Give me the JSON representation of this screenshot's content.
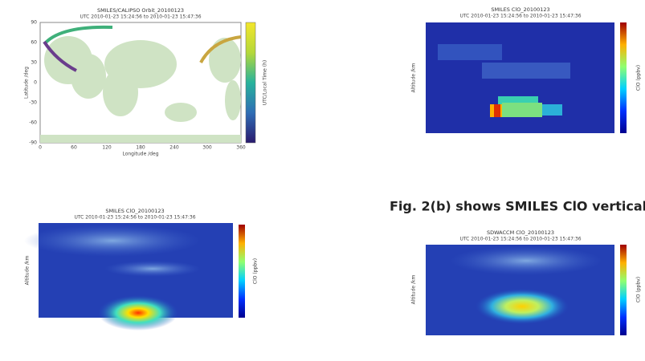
{
  "figures": [
    {
      "title": "SMILES/CALIPSO Orbit_20100123",
      "subtitle": "UTC 2010-01-23 15:24:56 to 2010-01-23 15:47:36",
      "x_label": "Longitude /deg",
      "y_label": "Latitude /deg",
      "colorbar_label": "UTC/Local Time (h)",
      "x_ticks": [
        "0",
        "60",
        "120",
        "180",
        "240",
        "300",
        "360"
      ],
      "y_ticks": [
        "90",
        "60",
        "30",
        "0",
        "-30",
        "-60",
        "-90"
      ]
    },
    {
      "title": "SMILES ClO_20100123",
      "subtitle": "UTC 2010-01-23 15:24:56 to 2010-01-23 15:47:36",
      "y_label": "Altitude /km",
      "colorbar_label": "ClO (ppbv)"
    },
    {
      "title": "SMILES ClO_20100123",
      "subtitle": "UTC 2010-01-23 15:24:56 to 2010-01-23 15:47:36",
      "y_label": "Altitude /km",
      "colorbar_label": "ClO (ppbv)"
    },
    {
      "title": "SDWACCM ClO_20100123",
      "subtitle": "UTC 2010-01-23 15:24:56 to 2010-01-23 15:47:36",
      "y_label": "Altitude /km",
      "colorbar_label": "ClO (ppbv)"
    }
  ],
  "caption": "Fig. 2(b) shows SMILES ClO vertical"
}
